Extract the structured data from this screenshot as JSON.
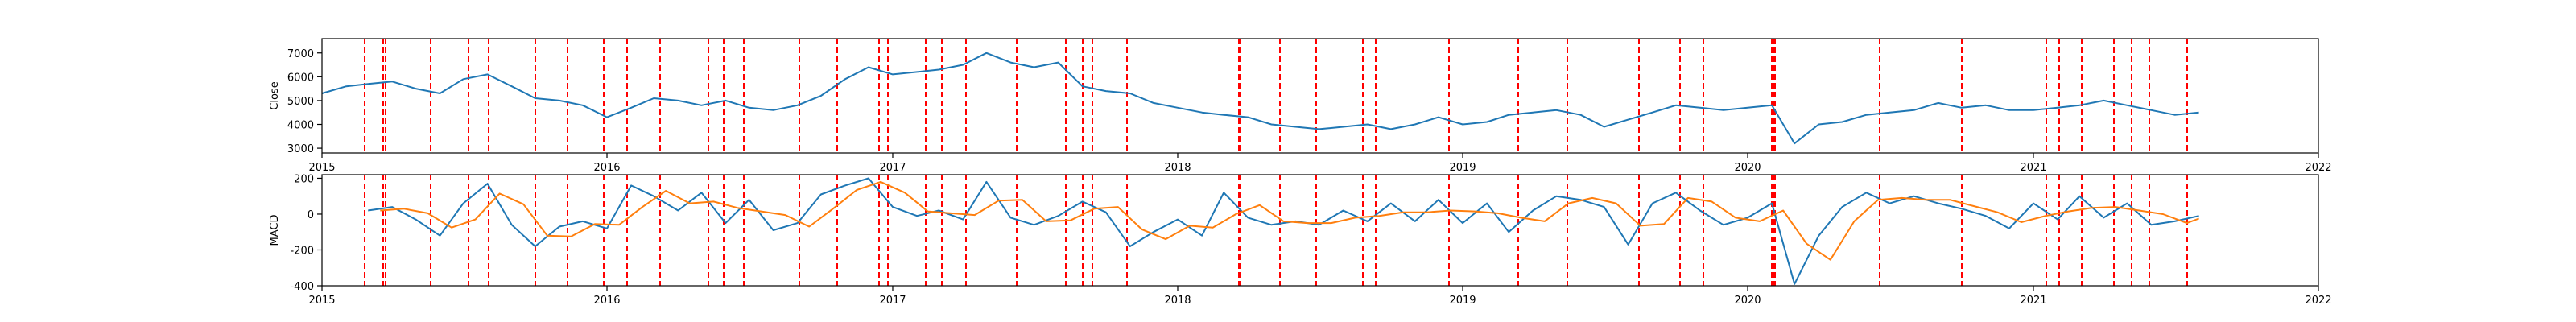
{
  "colors": {
    "close": "#1f77b4",
    "macd": "#1f77b4",
    "signal": "#ff7f0e",
    "event": "#ff0000",
    "axis": "#000000"
  },
  "chart_data": [
    {
      "type": "line",
      "title": "",
      "xlabel": "",
      "ylabel": "Close",
      "xlim": [
        "2015-01-01",
        "2022-01-01"
      ],
      "ylim": [
        2800,
        7600
      ],
      "yticks": [
        3000,
        4000,
        5000,
        6000,
        7000
      ],
      "xticks": [
        "2015",
        "2016",
        "2017",
        "2018",
        "2019",
        "2020",
        "2021",
        "2022"
      ],
      "grid": false,
      "series": [
        {
          "x": [
            "2015-01-01",
            "2015-02-01",
            "2015-03-01",
            "2015-04-01",
            "2015-05-01",
            "2015-06-01",
            "2015-07-01",
            "2015-08-01",
            "2015-09-01",
            "2015-10-01",
            "2015-11-01",
            "2015-12-01",
            "2016-01-01",
            "2016-02-01",
            "2016-03-01",
            "2016-04-01",
            "2016-05-01",
            "2016-06-01",
            "2016-07-01",
            "2016-08-01",
            "2016-09-01",
            "2016-10-01",
            "2016-11-01",
            "2016-12-01",
            "2017-01-01",
            "2017-02-01",
            "2017-03-01",
            "2017-04-01",
            "2017-05-01",
            "2017-06-01",
            "2017-07-01",
            "2017-08-01",
            "2017-09-01",
            "2017-10-01",
            "2017-11-01",
            "2017-12-01",
            "2018-01-01",
            "2018-02-01",
            "2018-03-01",
            "2018-04-01",
            "2018-05-01",
            "2018-06-01",
            "2018-07-01",
            "2018-08-01",
            "2018-09-01",
            "2018-10-01",
            "2018-11-01",
            "2018-12-01",
            "2019-01-01",
            "2019-02-01",
            "2019-03-01",
            "2019-04-01",
            "2019-05-01",
            "2019-06-01",
            "2019-07-01",
            "2019-08-01",
            "2019-09-01",
            "2019-10-01",
            "2019-11-01",
            "2019-12-01",
            "2020-01-01",
            "2020-02-01",
            "2020-03-01",
            "2020-04-01",
            "2020-05-01",
            "2020-06-01",
            "2020-07-01",
            "2020-08-01",
            "2020-09-01",
            "2020-10-01",
            "2020-11-01",
            "2020-12-01",
            "2021-01-01",
            "2021-02-01",
            "2021-03-01",
            "2021-04-01",
            "2021-05-01",
            "2021-06-01",
            "2021-07-01",
            "2021-08-01"
          ],
          "values": [
            5300,
            5600,
            5700,
            5800,
            5500,
            5300,
            5900,
            6100,
            5600,
            5100,
            5000,
            4800,
            4300,
            4700,
            5100,
            5000,
            4800,
            5000,
            4700,
            4600,
            4800,
            5200,
            5900,
            6400,
            6100,
            6200,
            6300,
            6500,
            7000,
            6600,
            6400,
            6600,
            5600,
            5400,
            5300,
            4900,
            4700,
            4500,
            4400,
            4300,
            4000,
            3900,
            3800,
            3900,
            4000,
            3800,
            4000,
            4300,
            4000,
            4100,
            4400,
            4500,
            4600,
            4400,
            3900,
            4200,
            4500,
            4800,
            4700,
            4600,
            4700,
            4800,
            3200,
            4000,
            4100,
            4400,
            4500,
            4600,
            4900,
            4700,
            4800,
            4600,
            4600,
            4700,
            4800,
            5000,
            4800,
            4600,
            4400,
            4500
          ]
        }
      ]
    },
    {
      "type": "line",
      "title": "",
      "xlabel": "",
      "ylabel": "MACD",
      "xlim": [
        "2015-01-01",
        "2022-01-01"
      ],
      "ylim": [
        -400,
        220
      ],
      "yticks": [
        -400,
        -200,
        0,
        200
      ],
      "xticks": [
        "2015",
        "2016",
        "2017",
        "2018",
        "2019",
        "2020",
        "2021",
        "2022"
      ],
      "grid": false,
      "series": [
        {
          "x": [
            "2015-03-01",
            "2015-04-01",
            "2015-05-01",
            "2015-06-01",
            "2015-07-01",
            "2015-08-01",
            "2015-09-01",
            "2015-10-01",
            "2015-11-01",
            "2015-12-01",
            "2016-01-01",
            "2016-02-01",
            "2016-03-01",
            "2016-04-01",
            "2016-05-01",
            "2016-06-01",
            "2016-07-01",
            "2016-08-01",
            "2016-09-01",
            "2016-10-01",
            "2016-11-01",
            "2016-12-01",
            "2017-01-01",
            "2017-02-01",
            "2017-03-01",
            "2017-04-01",
            "2017-05-01",
            "2017-06-01",
            "2017-07-01",
            "2017-08-01",
            "2017-09-01",
            "2017-10-01",
            "2017-11-01",
            "2017-12-01",
            "2018-01-01",
            "2018-02-01",
            "2018-03-01",
            "2018-04-01",
            "2018-05-01",
            "2018-06-01",
            "2018-07-01",
            "2018-08-01",
            "2018-09-01",
            "2018-10-01",
            "2018-11-01",
            "2018-12-01",
            "2019-01-01",
            "2019-02-01",
            "2019-03-01",
            "2019-04-01",
            "2019-05-01",
            "2019-06-01",
            "2019-07-01",
            "2019-08-01",
            "2019-09-01",
            "2019-10-01",
            "2019-11-01",
            "2019-12-01",
            "2020-01-01",
            "2020-02-01",
            "2020-03-01",
            "2020-04-01",
            "2020-05-01",
            "2020-06-01",
            "2020-07-01",
            "2020-08-01",
            "2020-09-01",
            "2020-10-01",
            "2020-11-01",
            "2020-12-01",
            "2021-01-01",
            "2021-02-01",
            "2021-03-01",
            "2021-04-01",
            "2021-05-01",
            "2021-06-01",
            "2021-07-01",
            "2021-08-01"
          ],
          "values": [
            20,
            40,
            -30,
            -120,
            60,
            170,
            -60,
            -180,
            -70,
            -40,
            -80,
            160,
            100,
            20,
            120,
            -50,
            80,
            -90,
            -50,
            110,
            160,
            200,
            40,
            -10,
            20,
            -30,
            180,
            -20,
            -60,
            -10,
            70,
            10,
            -180,
            -100,
            -30,
            -120,
            120,
            -20,
            -60,
            -40,
            -60,
            20,
            -40,
            60,
            -40,
            80,
            -50,
            60,
            -100,
            20,
            100,
            80,
            40,
            -170,
            60,
            120,
            20,
            -60,
            -20,
            60,
            -390,
            -120,
            40,
            120,
            60,
            100,
            60,
            30,
            -10,
            -80,
            60,
            -30,
            100,
            -20,
            60,
            -60,
            -40,
            -10
          ]
        }
      ]
    }
  ]
}
